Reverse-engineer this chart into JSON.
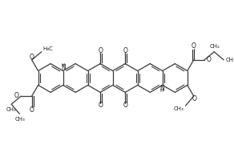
{
  "bg_color": "#ffffff",
  "line_color": "#3a3a3a",
  "text_color": "#1a1a1a",
  "lw": 0.9,
  "fontsize": 5.5,
  "s": 0.32,
  "xlim": [
    -2.5,
    2.5
  ],
  "ylim": [
    -1.7,
    1.7
  ]
}
